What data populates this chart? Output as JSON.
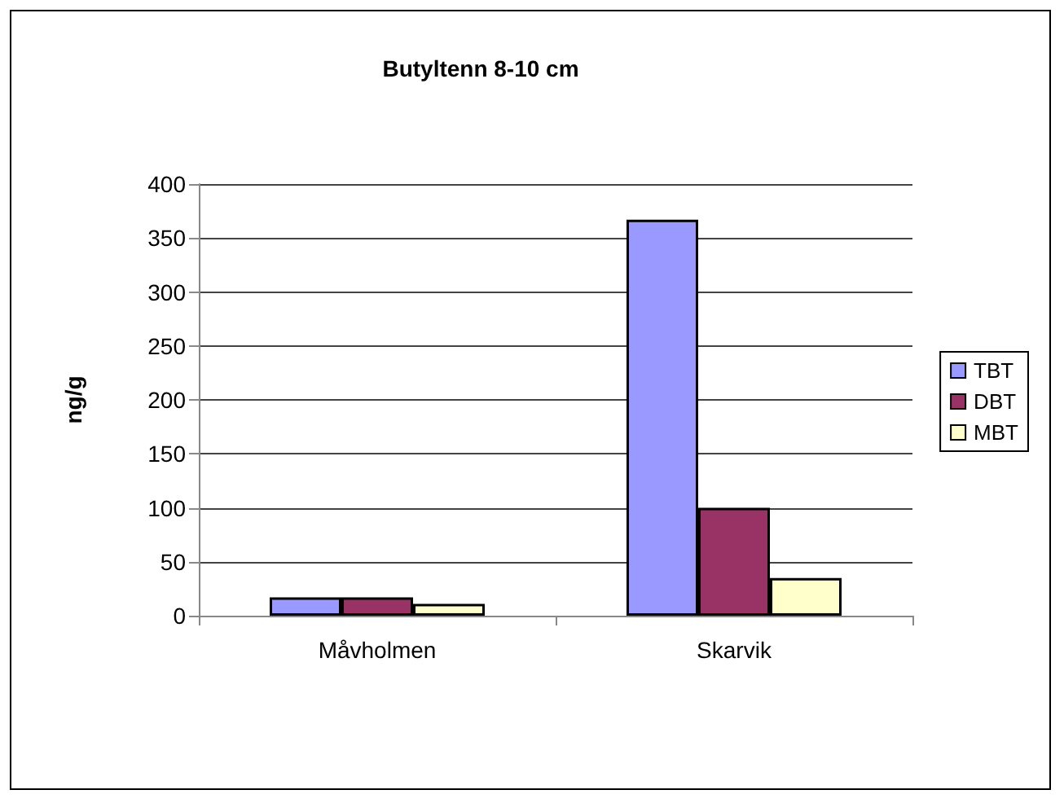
{
  "chart_data": {
    "type": "bar",
    "title": "Butyltenn 8-10 cm",
    "ylabel": "ng/g",
    "categories": [
      "Måvholmen",
      "Skarvik"
    ],
    "series": [
      {
        "name": "TBT",
        "color": "#9999ff",
        "values": [
          17,
          367
        ]
      },
      {
        "name": "DBT",
        "color": "#993366",
        "values": [
          17,
          100
        ]
      },
      {
        "name": "MBT",
        "color": "#ffffcc",
        "values": [
          11,
          35
        ]
      }
    ],
    "ylim": [
      0,
      400
    ],
    "yticks": [
      0,
      50,
      100,
      150,
      200,
      250,
      300,
      350,
      400
    ],
    "grid": "y",
    "legend": "right"
  }
}
